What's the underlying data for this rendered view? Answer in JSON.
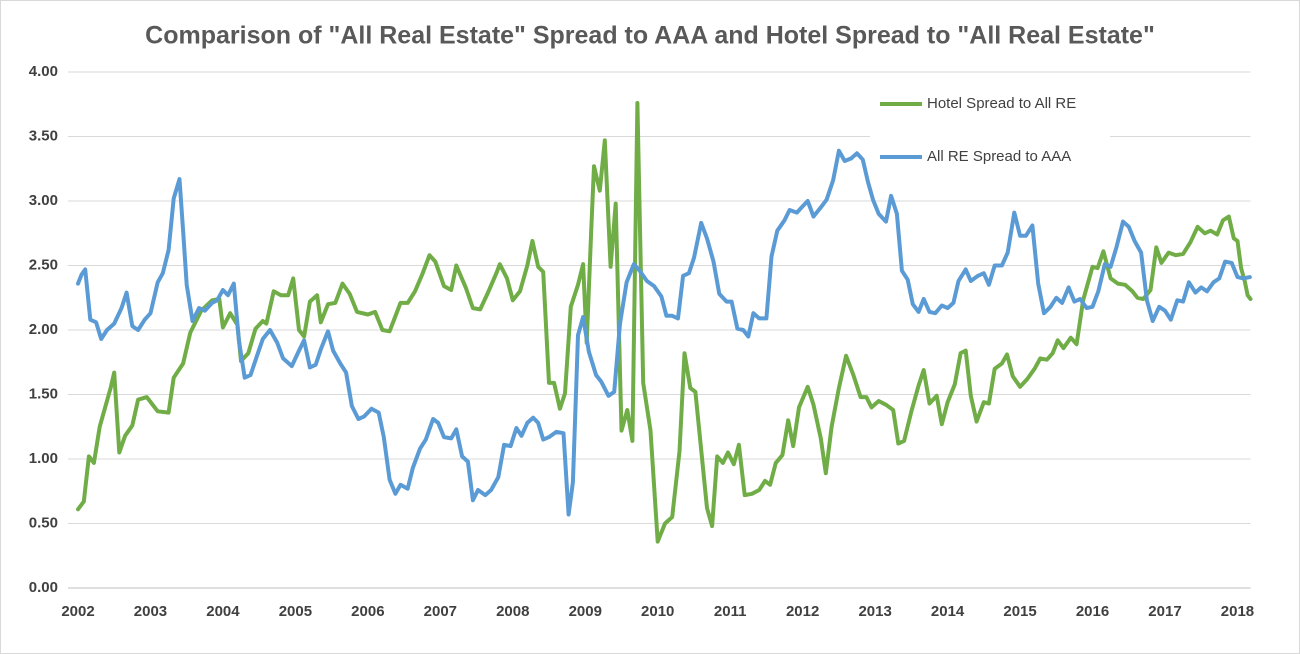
{
  "chart_data": {
    "type": "line",
    "title": "Comparison of \"All Real Estate\" Spread to AAA and Hotel Spread to \"All Real Estate\"",
    "xlim": [
      2002,
      2018.18
    ],
    "xticks": [
      2002,
      2003,
      2004,
      2005,
      2006,
      2007,
      2008,
      2009,
      2010,
      2011,
      2012,
      2013,
      2014,
      2015,
      2016,
      2017,
      2018
    ],
    "ylim": [
      0,
      4
    ],
    "yticks": [
      {
        "value": 0,
        "label": "0.00"
      },
      {
        "value": 0.5,
        "label": "0.50"
      },
      {
        "value": 1,
        "label": "1.00"
      },
      {
        "value": 1.5,
        "label": "1.50"
      },
      {
        "value": 2,
        "label": "2.00"
      },
      {
        "value": 2.5,
        "label": "2.50"
      },
      {
        "value": 3,
        "label": "3.00"
      },
      {
        "value": 3.5,
        "label": "3.50"
      },
      {
        "value": 4,
        "label": "4.00"
      }
    ],
    "grid": true,
    "legend": "upper right",
    "series": [
      {
        "name": "Hotel Spread to All RE",
        "color": "#70ad47",
        "x": [
          2002.0,
          2002.08,
          2002.15,
          2002.22,
          2002.3,
          2002.45,
          2002.5,
          2002.57,
          2002.65,
          2002.75,
          2002.83,
          2002.95,
          2003.1,
          2003.25,
          2003.32,
          2003.45,
          2003.55,
          2003.7,
          2003.85,
          2003.95,
          2004.0,
          2004.1,
          2004.2,
          2004.25,
          2004.35,
          2004.45,
          2004.55,
          2004.6,
          2004.7,
          2004.8,
          2004.9,
          2004.97,
          2005.05,
          2005.12,
          2005.2,
          2005.3,
          2005.35,
          2005.45,
          2005.55,
          2005.65,
          2005.75,
          2005.85,
          2006.0,
          2006.1,
          2006.2,
          2006.3,
          2006.45,
          2006.55,
          2006.65,
          2006.75,
          2006.85,
          2006.93,
          2007.05,
          2007.15,
          2007.22,
          2007.35,
          2007.45,
          2007.55,
          2007.65,
          2007.78,
          2007.82,
          2007.92,
          2008.0,
          2008.1,
          2008.2,
          2008.27,
          2008.35,
          2008.42,
          2008.5,
          2008.57,
          2008.65,
          2008.72,
          2008.8,
          2008.9,
          2008.97,
          2009.02,
          2009.08,
          2009.12,
          2009.2,
          2009.27,
          2009.35,
          2009.42,
          2009.5,
          2009.58,
          2009.65,
          2009.72,
          2009.8,
          2009.9,
          2010.0,
          2010.1,
          2010.2,
          2010.3,
          2010.37,
          2010.45,
          2010.52,
          2010.6,
          2010.68,
          2010.75,
          2010.82,
          2010.9,
          2010.97,
          2011.05,
          2011.12,
          2011.2,
          2011.3,
          2011.4,
          2011.48,
          2011.55,
          2011.63,
          2011.72,
          2011.8,
          2011.87,
          2011.95,
          2012.07,
          2012.15,
          2012.25,
          2012.32,
          2012.4,
          2012.5,
          2012.6,
          2012.7,
          2012.8,
          2012.88,
          2012.95,
          2013.05,
          2013.15,
          2013.25,
          2013.32,
          2013.4,
          2013.5,
          2013.6,
          2013.67,
          2013.75,
          2013.85,
          2013.92,
          2014.0,
          2014.1,
          2014.18,
          2014.25,
          2014.32,
          2014.4,
          2014.5,
          2014.57,
          2014.65,
          2014.75,
          2014.82,
          2014.9,
          2015.0,
          2015.1,
          2015.2,
          2015.28,
          2015.37,
          2015.45,
          2015.52,
          2015.6,
          2015.7,
          2015.78,
          2015.87,
          2016.0,
          2016.07,
          2016.15,
          2016.25,
          2016.35,
          2016.45,
          2016.55,
          2016.62,
          2016.7,
          2016.8,
          2016.88,
          2016.95,
          2017.05,
          2017.15,
          2017.25,
          2017.35,
          2017.45,
          2017.55,
          2017.63,
          2017.72,
          2017.8,
          2017.88,
          2017.95,
          2018.0,
          2018.05,
          2018.1,
          2018.14,
          2018.18
        ],
        "values": [
          0.61,
          0.67,
          1.02,
          0.97,
          1.25,
          1.55,
          1.67,
          1.05,
          1.18,
          1.26,
          1.46,
          1.48,
          1.37,
          1.36,
          1.63,
          1.74,
          1.98,
          2.15,
          2.23,
          2.24,
          2.02,
          2.13,
          2.04,
          1.76,
          1.82,
          2.01,
          2.07,
          2.05,
          2.3,
          2.27,
          2.27,
          2.4,
          2.0,
          1.95,
          2.22,
          2.27,
          2.06,
          2.2,
          2.21,
          2.36,
          2.28,
          2.14,
          2.12,
          2.14,
          2.0,
          1.99,
          2.21,
          2.21,
          2.3,
          2.43,
          2.58,
          2.53,
          2.34,
          2.31,
          2.5,
          2.33,
          2.17,
          2.16,
          2.28,
          2.45,
          2.51,
          2.4,
          2.23,
          2.3,
          2.5,
          2.69,
          2.49,
          2.45,
          1.59,
          1.59,
          1.39,
          1.51,
          2.18,
          2.35,
          2.51,
          1.9,
          2.75,
          3.27,
          3.08,
          3.47,
          2.49,
          2.98,
          1.22,
          1.38,
          1.14,
          3.76,
          1.59,
          1.22,
          0.36,
          0.5,
          0.55,
          1.06,
          1.82,
          1.55,
          1.52,
          1.07,
          0.62,
          0.48,
          1.02,
          0.97,
          1.05,
          0.96,
          1.11,
          0.72,
          0.73,
          0.76,
          0.83,
          0.8,
          0.97,
          1.03,
          1.3,
          1.1,
          1.4,
          1.56,
          1.42,
          1.16,
          0.89,
          1.25,
          1.55,
          1.8,
          1.65,
          1.48,
          1.48,
          1.4,
          1.45,
          1.42,
          1.38,
          1.12,
          1.14,
          1.37,
          1.57,
          1.69,
          1.43,
          1.49,
          1.27,
          1.44,
          1.58,
          1.82,
          1.84,
          1.49,
          1.29,
          1.44,
          1.43,
          1.7,
          1.74,
          1.81,
          1.64,
          1.56,
          1.62,
          1.7,
          1.78,
          1.77,
          1.82,
          1.92,
          1.86,
          1.94,
          1.89,
          2.23,
          2.49,
          2.48,
          2.61,
          2.4,
          2.36,
          2.35,
          2.3,
          2.25,
          2.24,
          2.31,
          2.64,
          2.52,
          2.6,
          2.58,
          2.59,
          2.68,
          2.8,
          2.75,
          2.77,
          2.74,
          2.85,
          2.88,
          2.71,
          2.69,
          2.48,
          2.38,
          2.27,
          2.24
        ]
      },
      {
        "name": "All RE Spread to AAA",
        "color": "#5b9bd5",
        "x": [
          2002.0,
          2002.05,
          2002.1,
          2002.17,
          2002.25,
          2002.32,
          2002.4,
          2002.5,
          2002.6,
          2002.67,
          2002.75,
          2002.83,
          2002.92,
          2003.0,
          2003.1,
          2003.17,
          2003.25,
          2003.32,
          2003.4,
          2003.45,
          2003.5,
          2003.58,
          2003.67,
          2003.75,
          2003.85,
          2003.92,
          2004.0,
          2004.07,
          2004.15,
          2004.22,
          2004.3,
          2004.38,
          2004.47,
          2004.55,
          2004.65,
          2004.75,
          2004.83,
          2004.95,
          2005.05,
          2005.12,
          2005.2,
          2005.28,
          2005.35,
          2005.45,
          2005.52,
          2005.62,
          2005.7,
          2005.78,
          2005.87,
          2005.95,
          2006.05,
          2006.15,
          2006.22,
          2006.3,
          2006.38,
          2006.45,
          2006.55,
          2006.62,
          2006.72,
          2006.8,
          2006.9,
          2006.97,
          2007.05,
          2007.15,
          2007.22,
          2007.3,
          2007.38,
          2007.45,
          2007.52,
          2007.62,
          2007.7,
          2007.8,
          2007.88,
          2007.97,
          2008.05,
          2008.12,
          2008.2,
          2008.28,
          2008.35,
          2008.42,
          2008.5,
          2008.6,
          2008.7,
          2008.77,
          2008.83,
          2008.9,
          2008.97,
          2009.05,
          2009.15,
          2009.22,
          2009.32,
          2009.4,
          2009.48,
          2009.57,
          2009.67,
          2009.75,
          2009.85,
          2009.95,
          2010.05,
          2010.12,
          2010.2,
          2010.28,
          2010.35,
          2010.43,
          2010.5,
          2010.6,
          2010.68,
          2010.77,
          2010.85,
          2010.95,
          2011.02,
          2011.1,
          2011.18,
          2011.25,
          2011.32,
          2011.4,
          2011.5,
          2011.57,
          2011.65,
          2011.75,
          2011.82,
          2011.92,
          2012.0,
          2012.07,
          2012.15,
          2012.25,
          2012.33,
          2012.42,
          2012.5,
          2012.58,
          2012.67,
          2012.75,
          2012.83,
          2012.9,
          2012.97,
          2013.05,
          2013.15,
          2013.22,
          2013.3,
          2013.37,
          2013.45,
          2013.52,
          2013.6,
          2013.67,
          2013.75,
          2013.83,
          2013.92,
          2014.0,
          2014.08,
          2014.15,
          2014.25,
          2014.32,
          2014.42,
          2014.5,
          2014.57,
          2014.65,
          2014.75,
          2014.83,
          2014.92,
          2015.0,
          2015.08,
          2015.17,
          2015.25,
          2015.33,
          2015.42,
          2015.5,
          2015.58,
          2015.67,
          2015.75,
          2015.83,
          2015.92,
          2016.0,
          2016.08,
          2016.17,
          2016.25,
          2016.33,
          2016.42,
          2016.5,
          2016.58,
          2016.67,
          2016.75,
          2016.83,
          2016.92,
          2017.0,
          2017.08,
          2017.17,
          2017.25,
          2017.33,
          2017.42,
          2017.5,
          2017.58,
          2017.67,
          2017.75,
          2017.83,
          2017.92,
          2018.0,
          2018.08,
          2018.17
        ],
        "values": [
          2.36,
          2.43,
          2.47,
          2.08,
          2.06,
          1.93,
          2.0,
          2.05,
          2.17,
          2.29,
          2.03,
          2.0,
          2.08,
          2.13,
          2.37,
          2.44,
          2.62,
          3.02,
          3.17,
          2.77,
          2.35,
          2.07,
          2.17,
          2.15,
          2.21,
          2.23,
          2.31,
          2.27,
          2.36,
          1.92,
          1.63,
          1.65,
          1.8,
          1.93,
          2.0,
          1.9,
          1.78,
          1.72,
          1.84,
          1.92,
          1.71,
          1.73,
          1.85,
          1.99,
          1.84,
          1.74,
          1.67,
          1.41,
          1.31,
          1.33,
          1.39,
          1.36,
          1.17,
          0.84,
          0.73,
          0.8,
          0.77,
          0.93,
          1.08,
          1.15,
          1.31,
          1.28,
          1.17,
          1.16,
          1.23,
          1.02,
          0.98,
          0.68,
          0.76,
          0.72,
          0.76,
          0.86,
          1.11,
          1.1,
          1.24,
          1.18,
          1.28,
          1.32,
          1.28,
          1.15,
          1.17,
          1.21,
          1.2,
          0.57,
          0.82,
          1.96,
          2.1,
          1.83,
          1.65,
          1.6,
          1.49,
          1.52,
          2.05,
          2.37,
          2.51,
          2.46,
          2.38,
          2.34,
          2.26,
          2.11,
          2.11,
          2.09,
          2.42,
          2.44,
          2.56,
          2.83,
          2.71,
          2.53,
          2.28,
          2.22,
          2.22,
          2.01,
          2.0,
          1.95,
          2.13,
          2.09,
          2.09,
          2.57,
          2.77,
          2.85,
          2.93,
          2.91,
          2.96,
          3.0,
          2.88,
          2.95,
          3.01,
          3.16,
          3.39,
          3.31,
          3.33,
          3.37,
          3.32,
          3.15,
          3.01,
          2.9,
          2.84,
          3.04,
          2.9,
          2.46,
          2.39,
          2.2,
          2.14,
          2.24,
          2.14,
          2.13,
          2.19,
          2.17,
          2.21,
          2.38,
          2.47,
          2.38,
          2.42,
          2.44,
          2.35,
          2.5,
          2.5,
          2.6,
          2.91,
          2.73,
          2.73,
          2.81,
          2.36,
          2.13,
          2.18,
          2.25,
          2.21,
          2.33,
          2.22,
          2.24,
          2.17,
          2.18,
          2.3,
          2.51,
          2.49,
          2.64,
          2.84,
          2.8,
          2.69,
          2.6,
          2.23,
          2.07,
          2.18,
          2.15,
          2.08,
          2.23,
          2.22,
          2.37,
          2.29,
          2.33,
          2.3,
          2.37,
          2.4,
          2.53,
          2.52,
          2.41,
          2.4,
          2.41
        ]
      }
    ]
  }
}
